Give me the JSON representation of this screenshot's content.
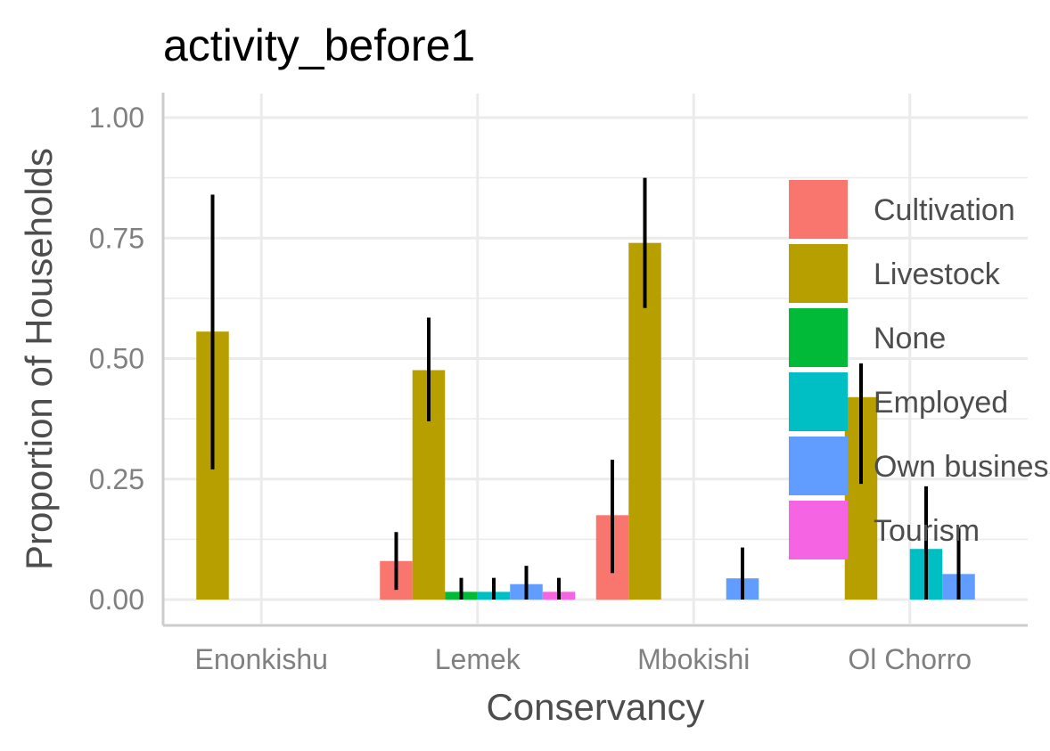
{
  "chart_data": {
    "type": "bar",
    "title": "activity_before1",
    "xlabel": "Conservancy",
    "ylabel": "Proportion of Households",
    "categories": [
      "Enonkishu",
      "Lemek",
      "Mbokishi",
      "Ol Chorro"
    ],
    "ylim": [
      -0.05,
      1.05
    ],
    "yticks": [
      "0.00",
      "0.25",
      "0.50",
      "0.75",
      "1.00"
    ],
    "grid": true,
    "legend_position": "right (inside plot)",
    "series": [
      {
        "name": "Cultivation",
        "color": "#F8766D",
        "values": [
          null,
          0.08,
          0.175,
          null
        ],
        "err_low": [
          null,
          0.02,
          0.055,
          null
        ],
        "err_high": [
          null,
          0.14,
          0.29,
          null
        ]
      },
      {
        "name": "Livestock",
        "color": "#B79F00",
        "values": [
          0.556,
          0.476,
          0.74,
          0.42
        ],
        "err_low": [
          0.27,
          0.37,
          0.605,
          0.24
        ],
        "err_high": [
          0.84,
          0.585,
          0.875,
          0.49
        ]
      },
      {
        "name": "None",
        "color": "#00BA38",
        "values": [
          null,
          0.016,
          null,
          null
        ],
        "err_low": [
          null,
          0.0,
          null,
          null
        ],
        "err_high": [
          null,
          0.045,
          null,
          null
        ]
      },
      {
        "name": "Employed",
        "color": "#00BFC4",
        "values": [
          null,
          0.016,
          null,
          0.105
        ],
        "err_low": [
          null,
          0.0,
          null,
          0.0
        ],
        "err_high": [
          null,
          0.045,
          null,
          0.235
        ]
      },
      {
        "name": "Own business",
        "color": "#619CFF",
        "values": [
          null,
          0.032,
          0.044,
          0.053
        ],
        "err_low": [
          null,
          0.0,
          0.0,
          0.0
        ],
        "err_high": [
          null,
          0.07,
          0.108,
          0.148
        ]
      },
      {
        "name": "Tourism",
        "color": "#F564E3",
        "values": [
          null,
          0.016,
          null,
          null
        ],
        "err_low": [
          null,
          0.0,
          null,
          null
        ],
        "err_high": [
          null,
          0.045,
          null,
          null
        ]
      }
    ]
  }
}
